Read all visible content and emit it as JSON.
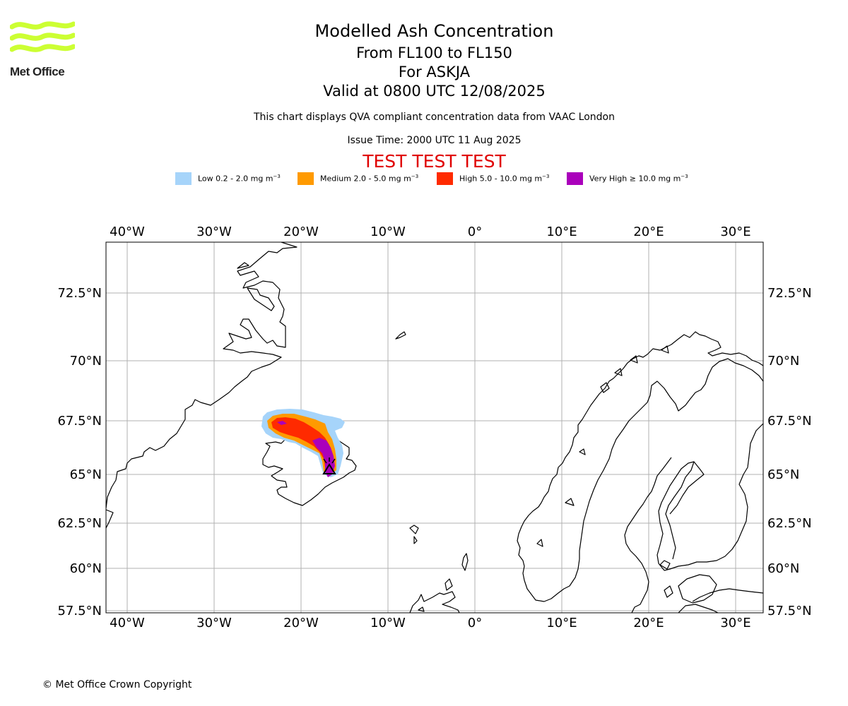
{
  "logo": {
    "text": "Met Office",
    "brand_color": "#ccff33"
  },
  "header": {
    "title": "Modelled Ash Concentration",
    "flight_levels": "From FL100 to FL150",
    "volcano": "For ASKJA",
    "valid_time": "Valid at 0800 UTC 12/08/2025",
    "compliance_note": "This chart displays QVA compliant concentration data from VAAC London",
    "issue_time": "Issue Time: 2000 UTC 11 Aug 2025",
    "test_banner": "TEST TEST TEST"
  },
  "legend": [
    {
      "name": "Low",
      "label": "Low 0.2 - 2.0 mg m",
      "color": "#a6d4fa"
    },
    {
      "name": "Medium",
      "label": "Medium 2.0 - 5.0 mg m",
      "color": "#ff9a00"
    },
    {
      "name": "High",
      "label": "High 5.0 - 10.0 mg m",
      "color": "#ff2a00"
    },
    {
      "name": "Very High",
      "label": "Very High ≥ 10.0 mg m",
      "color": "#aa00bb"
    }
  ],
  "legend_unit_exponent": "−3",
  "map": {
    "lon_ticks": [
      "40°W",
      "30°W",
      "20°W",
      "10°W",
      "0°",
      "10°E",
      "20°E",
      "30°E"
    ],
    "lat_ticks": [
      "72.5°N",
      "70°N",
      "67.5°N",
      "65°N",
      "62.5°N",
      "60°N",
      "57.5°N"
    ],
    "gridline_color": "#b0b0b0",
    "volcano_marker": "triangle-icon"
  },
  "footer": {
    "copyright": "© Met Office Crown Copyright"
  }
}
